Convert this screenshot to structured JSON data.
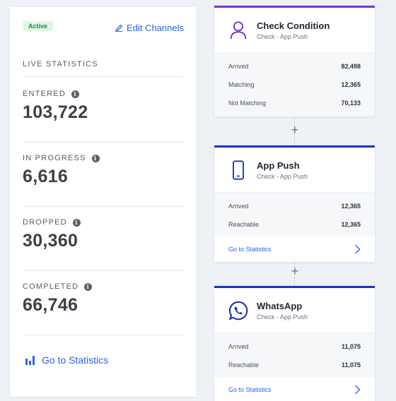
{
  "stats": {
    "status": "Active",
    "edit_channels": "Edit Channels",
    "section_title": "LIVE STATISTICS",
    "metrics": [
      {
        "label": "ENTERED",
        "value": "103,722"
      },
      {
        "label": "IN PROGRESS",
        "value": "6,616"
      },
      {
        "label": "DROPPED",
        "value": "30,360"
      },
      {
        "label": "COMPLETED",
        "value": "66,746"
      }
    ],
    "go_to_statistics": "Go to Statistics"
  },
  "cards": [
    {
      "title": "Check Condition",
      "subtitle": "Check - App Push",
      "icon": "user-icon",
      "accent": "#7236d4",
      "rows": [
        {
          "label": "Arrived",
          "value": "82,498"
        },
        {
          "label": "Matching",
          "value": "12,365"
        },
        {
          "label": "Not Matching",
          "value": "70,133"
        }
      ]
    },
    {
      "title": "App Push",
      "subtitle": "Check - App Push",
      "icon": "mobile-phone-icon",
      "accent": "#1d34b8",
      "rows": [
        {
          "label": "Arrived",
          "value": "12,365"
        },
        {
          "label": "Reachable",
          "value": "12,365"
        }
      ],
      "footer": "Go to Statistics"
    },
    {
      "title": "WhatsApp",
      "subtitle": "Check - App Push",
      "icon": "whatsapp-icon",
      "accent": "#1d34b8",
      "rows": [
        {
          "label": "Arrived",
          "value": "11,075"
        },
        {
          "label": "Reachable",
          "value": "11,075"
        }
      ],
      "footer": "Go to Statistics"
    }
  ],
  "info_icon_glyph": "i",
  "plus_glyph": "+"
}
